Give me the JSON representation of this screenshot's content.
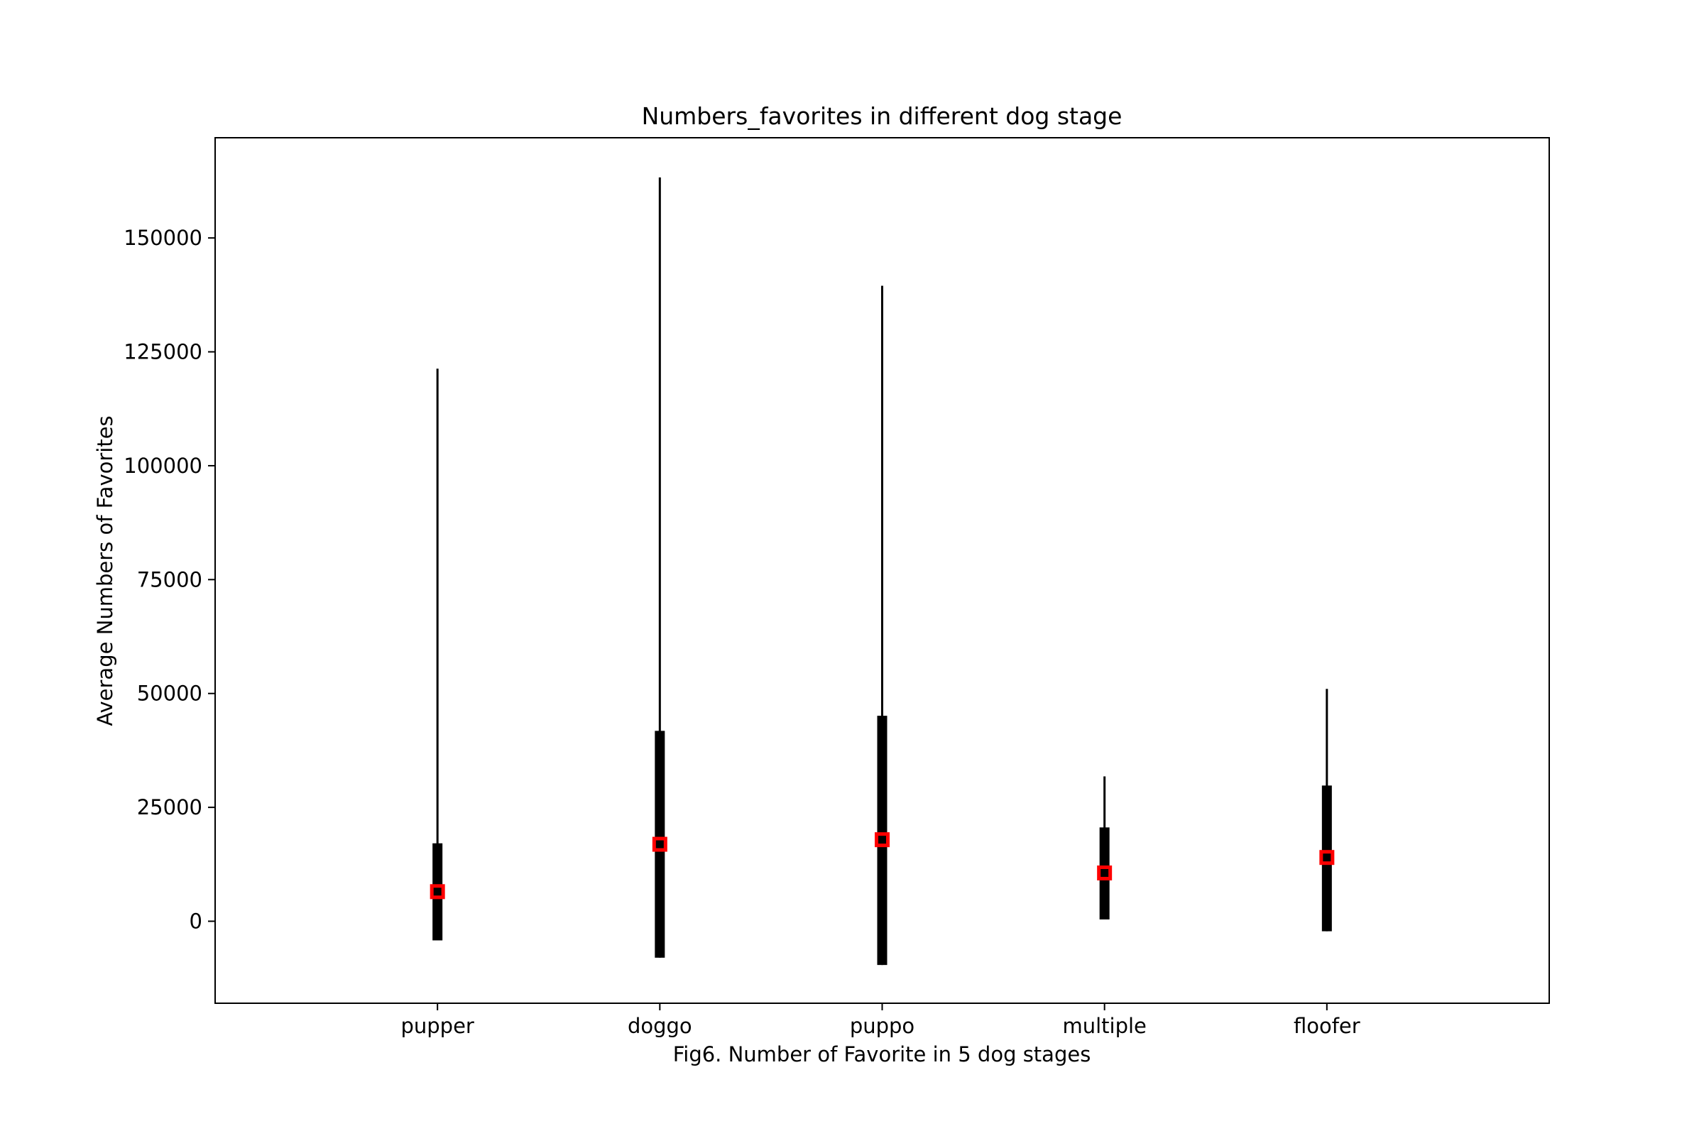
{
  "chart_data": {
    "type": "errorbar",
    "title": "Numbers_favorites in different dog stage",
    "xlabel": "Fig6. Number of Favorite in 5 dog stages",
    "ylabel": "Average Numbers of Favorites",
    "categories": [
      "pupper",
      "doggo",
      "puppo",
      "multiple",
      "floofer"
    ],
    "mean": [
      6500,
      16900,
      17900,
      10600,
      14000
    ],
    "std_range": [
      [
        -4200,
        17100
      ],
      [
        -8000,
        41800
      ],
      [
        -9600,
        45100
      ],
      [
        400,
        20600
      ],
      [
        -2200,
        29800
      ]
    ],
    "minmax_range": [
      [
        -4200,
        121300
      ],
      [
        -8000,
        163300
      ],
      [
        -9600,
        139500
      ],
      [
        400,
        31800
      ],
      [
        -2200,
        51000
      ]
    ],
    "ylim": [
      -18000,
      172000
    ],
    "yticks": [
      0,
      25000,
      50000,
      75000,
      100000,
      125000,
      150000
    ],
    "ytick_labels": [
      "0",
      "25000",
      "50000",
      "75000",
      "100000",
      "125000",
      "150000"
    ],
    "xlim": [
      -1.0,
      5.0
    ],
    "grid": false,
    "colors": {
      "bar": "#000000",
      "marker_edge": "#ff0000",
      "marker_face": "#000000"
    }
  }
}
